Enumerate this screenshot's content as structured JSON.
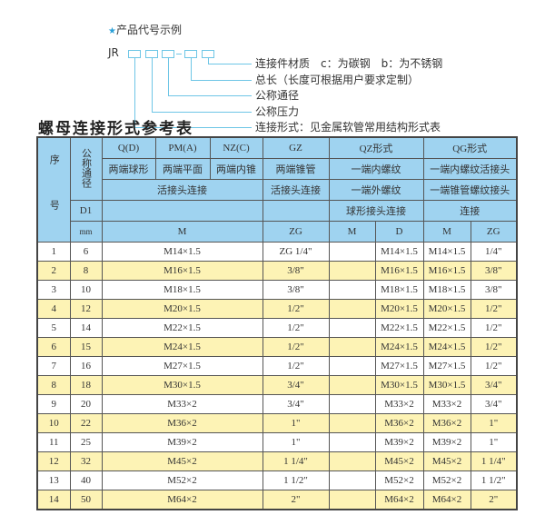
{
  "intro": {
    "title": "产品代号示例",
    "star_icon": "star-icon",
    "code_prefix": "JR",
    "legend": [
      "连接件材质　c：为碳钢　b：为不锈钢",
      "总长（长度可根据用户要求定制）",
      "公称通径",
      "公称压力",
      "连接形式：见金属软管常用结构形式表"
    ]
  },
  "table_title": "螺母连接形式参考表",
  "header": {
    "seq": "序　号",
    "dn": "公称通径",
    "d1": "D1",
    "mm": "mm",
    "types": [
      "Q(D)",
      "PM(A)",
      "NZ(C)",
      "GZ",
      "QZ形式",
      "QG形式"
    ],
    "desc": [
      "两端球形",
      "两端平面",
      "两端内锥",
      "两端锥管",
      "一端内螺纹",
      "一端内螺纹活接头"
    ],
    "conn_a": "活接头连接",
    "conn_gz": "活接头连接",
    "conn_qz1": "一端外螺纹",
    "conn_qz2": "球形接头连接",
    "conn_qg1": "一端锥管螺纹接头",
    "conn_qg2": "连接",
    "sub": [
      "M",
      "ZG",
      "M",
      "D",
      "M",
      "ZG"
    ]
  },
  "rows": [
    {
      "no": "1",
      "dn": "6",
      "m": "M14×1.5",
      "zg": "ZG 1/4\"",
      "qz_d": "M14×1.5",
      "qg_m": "M14×1.5",
      "qg_zg": "1/4\""
    },
    {
      "no": "2",
      "dn": "8",
      "m": "M16×1.5",
      "zg": "3/8\"",
      "qz_d": "M16×1.5",
      "qg_m": "M16×1.5",
      "qg_zg": "3/8\""
    },
    {
      "no": "3",
      "dn": "10",
      "m": "M18×1.5",
      "zg": "3/8\"",
      "qz_d": "M18×1.5",
      "qg_m": "M18×1.5",
      "qg_zg": "3/8\""
    },
    {
      "no": "4",
      "dn": "12",
      "m": "M20×1.5",
      "zg": "1/2\"",
      "qz_d": "M20×1.5",
      "qg_m": "M20×1.5",
      "qg_zg": "1/2\""
    },
    {
      "no": "5",
      "dn": "14",
      "m": "M22×1.5",
      "zg": "1/2\"",
      "qz_d": "M22×1.5",
      "qg_m": "M22×1.5",
      "qg_zg": "1/2\""
    },
    {
      "no": "6",
      "dn": "15",
      "m": "M24×1.5",
      "zg": "1/2\"",
      "qz_d": "M24×1.5",
      "qg_m": "M24×1.5",
      "qg_zg": "1/2\""
    },
    {
      "no": "7",
      "dn": "16",
      "m": "M27×1.5",
      "zg": "1/2\"",
      "qz_d": "M27×1.5",
      "qg_m": "M27×1.5",
      "qg_zg": "1/2\""
    },
    {
      "no": "8",
      "dn": "18",
      "m": "M30×1.5",
      "zg": "3/4\"",
      "qz_d": "M30×1.5",
      "qg_m": "M30×1.5",
      "qg_zg": "3/4\""
    },
    {
      "no": "9",
      "dn": "20",
      "m": "M33×2",
      "zg": "3/4\"",
      "qz_d": "M33×2",
      "qg_m": "M33×2",
      "qg_zg": "3/4\""
    },
    {
      "no": "10",
      "dn": "22",
      "m": "M36×2",
      "zg": "1\"",
      "qz_d": "M36×2",
      "qg_m": "M36×2",
      "qg_zg": "1\""
    },
    {
      "no": "11",
      "dn": "25",
      "m": "M39×2",
      "zg": "1\"",
      "qz_d": "M39×2",
      "qg_m": "M39×2",
      "qg_zg": "1\""
    },
    {
      "no": "12",
      "dn": "32",
      "m": "M45×2",
      "zg": "1 1/4\"",
      "qz_d": "M45×2",
      "qg_m": "M45×2",
      "qg_zg": "1 1/4\""
    },
    {
      "no": "13",
      "dn": "40",
      "m": "M52×2",
      "zg": "1 1/2\"",
      "qz_d": "M52×2",
      "qg_m": "M52×2",
      "qg_zg": "1 1/2\""
    },
    {
      "no": "14",
      "dn": "50",
      "m": "M64×2",
      "zg": "2\"",
      "qz_d": "M64×2",
      "qg_m": "M64×2",
      "qg_zg": "2\""
    }
  ]
}
